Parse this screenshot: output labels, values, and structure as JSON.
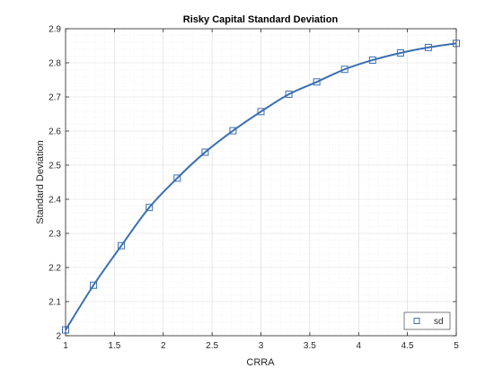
{
  "chart_data": {
    "type": "line",
    "title": "Risky Capital Standard Deviation",
    "xlabel": "CRRA",
    "ylabel": "Standard Deviation",
    "xlim": [
      1,
      5
    ],
    "ylim": [
      2,
      2.9
    ],
    "xticks": [
      1,
      1.5,
      2,
      2.5,
      3,
      3.5,
      4,
      4.5,
      5
    ],
    "xtick_labels": [
      "1",
      "1.5",
      "2",
      "2.5",
      "3",
      "3.5",
      "4",
      "4.5",
      "5"
    ],
    "yticks": [
      2,
      2.1,
      2.2,
      2.3,
      2.4,
      2.5,
      2.6,
      2.7,
      2.8,
      2.9
    ],
    "ytick_labels": [
      "2",
      "2.1",
      "2.2",
      "2.3",
      "2.4",
      "2.5",
      "2.6",
      "2.7",
      "2.8",
      "2.9"
    ],
    "grid": true,
    "minor_grid": true,
    "legend_position": "bottom-right",
    "series": [
      {
        "name": "sd",
        "color": "#3b6fb1",
        "marker": "square",
        "x": [
          1.0,
          1.286,
          1.571,
          1.857,
          2.143,
          2.429,
          2.714,
          3.0,
          3.286,
          3.571,
          3.857,
          4.143,
          4.429,
          4.714,
          5.0
        ],
        "values": [
          2.017,
          2.148,
          2.264,
          2.376,
          2.462,
          2.538,
          2.601,
          2.657,
          2.708,
          2.744,
          2.781,
          2.808,
          2.829,
          2.845,
          2.857
        ]
      }
    ]
  }
}
